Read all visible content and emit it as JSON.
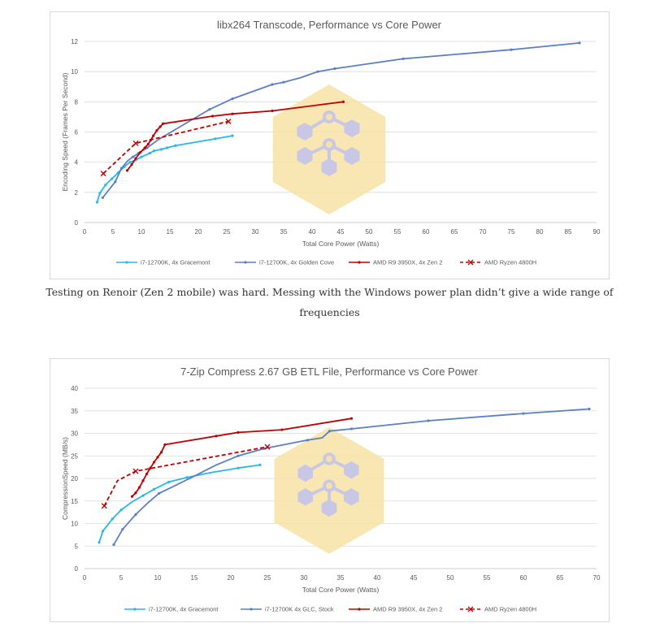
{
  "caption": "Testing on Renoir (Zen 2 mobile) was hard. Messing with the Windows power plan didn’t give a wide range of frequencies",
  "watermark": {
    "color": "#f7e2a6",
    "molecule_color": "#c8c8e6"
  },
  "chart_data": [
    {
      "type": "line",
      "title": "libx264 Transcode, Performance vs Core Power",
      "xlabel": "Total Core Power (Watts)",
      "ylabel": "Encoding Speed (Frames Per Second)",
      "xlim": [
        0,
        90
      ],
      "ylim": [
        0,
        12
      ],
      "xticks": [
        0,
        5,
        10,
        15,
        20,
        25,
        30,
        35,
        40,
        45,
        50,
        55,
        60,
        65,
        70,
        75,
        80,
        85,
        90
      ],
      "yticks": [
        0,
        2,
        4,
        6,
        8,
        10,
        12
      ],
      "grid": true,
      "legend_position": "bottom",
      "series": [
        {
          "name": "i7-12700K, 4x Gracemont",
          "color": "#29b6e8",
          "dashed": false,
          "marker": "dot",
          "x": [
            2.2,
            2.7,
            3.7,
            4.8,
            5.9,
            7.0,
            8.0,
            9.0,
            10.0,
            11.5,
            12.2,
            13.5,
            14.5,
            16.0,
            23.0,
            26.0
          ],
          "y": [
            1.35,
            1.95,
            2.5,
            2.9,
            3.3,
            3.7,
            4.0,
            4.15,
            4.35,
            4.6,
            4.75,
            4.85,
            4.95,
            5.1,
            5.55,
            5.75
          ]
        },
        {
          "name": "i7-12700K, 4x Golden Cove",
          "color": "#5b7fc7",
          "dashed": false,
          "marker": "dot",
          "x": [
            3.2,
            5.4,
            6.5,
            7.6,
            8.5,
            9.5,
            11.0,
            13.0,
            17.0,
            22.0,
            26.0,
            33.0,
            35.0,
            38.0,
            41.0,
            44.0,
            56.0,
            75.0,
            87.0
          ],
          "y": [
            1.65,
            2.7,
            3.6,
            4.1,
            4.35,
            4.6,
            4.95,
            5.5,
            6.4,
            7.5,
            8.2,
            9.15,
            9.3,
            9.6,
            10.0,
            10.2,
            10.85,
            11.45,
            11.9
          ],
          "hidden_markers": [
            3,
            7,
            8,
            13
          ]
        },
        {
          "name": "AMD R9 3950X, 4x Zen 2",
          "color": "#c00000",
          "dashed": false,
          "marker": "dot",
          "x": [
            7.5,
            8.3,
            9.0,
            9.8,
            10.6,
            11.2,
            11.6,
            12.1,
            12.7,
            13.3,
            13.8,
            22.5,
            26.0,
            33.0,
            45.5
          ],
          "y": [
            3.45,
            3.85,
            4.25,
            4.65,
            4.95,
            5.2,
            5.45,
            5.75,
            6.1,
            6.35,
            6.55,
            7.05,
            7.2,
            7.4,
            8.0
          ]
        },
        {
          "name": "AMD Ryzen 4800H",
          "color": "#c00000",
          "dashed": true,
          "marker": "x",
          "x": [
            3.3,
            9.0,
            25.3
          ],
          "y": [
            3.25,
            5.25,
            6.7
          ]
        }
      ]
    },
    {
      "type": "line",
      "title": "7-Zip Compress 2.67 GB ETL File, Performance vs Core Power",
      "xlabel": "Total Core Power (Watts)",
      "ylabel": "CompressionSpeed (MB/s)",
      "xlim": [
        0,
        70
      ],
      "ylim": [
        0,
        40
      ],
      "xticks": [
        0,
        5,
        10,
        15,
        20,
        25,
        30,
        35,
        40,
        45,
        50,
        55,
        60,
        65,
        70
      ],
      "yticks": [
        0,
        5,
        10,
        15,
        20,
        25,
        30,
        35,
        40
      ],
      "grid": true,
      "legend_position": "bottom",
      "series": [
        {
          "name": "i7-12700K, 4x Gracemont",
          "color": "#29b6e8",
          "dashed": false,
          "marker": "dot",
          "x": [
            2.0,
            2.5,
            3.8,
            5.0,
            6.5,
            8.0,
            9.5,
            11.5,
            14.0,
            17.0,
            21.0,
            24.0
          ],
          "y": [
            5.8,
            8.3,
            11.0,
            13.0,
            14.8,
            16.2,
            17.6,
            19.2,
            20.2,
            21.2,
            22.3,
            23.0
          ],
          "hidden_markers": [
            4,
            9
          ]
        },
        {
          "name": "i7-12700K 4x GLC, Stock",
          "color": "#5b7fc7",
          "dashed": false,
          "marker": "dot",
          "x": [
            4.0,
            5.2,
            7.0,
            8.8,
            10.2,
            12.5,
            15.0,
            18.0,
            21.0,
            24.5,
            28.5,
            30.5,
            32.5,
            33.5,
            36.5,
            47.0,
            60.0,
            69.0
          ],
          "y": [
            5.3,
            8.7,
            12.0,
            14.8,
            16.7,
            18.5,
            20.5,
            23.0,
            25.0,
            26.6,
            27.9,
            28.5,
            29.0,
            30.5,
            31.0,
            32.8,
            34.4,
            35.4
          ],
          "hidden_markers": [
            3,
            5,
            6,
            7,
            10,
            12
          ]
        },
        {
          "name": "AMD R9 3950X, 4x Zen 2",
          "color": "#c00000",
          "dashed": false,
          "marker": "dot",
          "x": [
            6.5,
            7.0,
            7.5,
            8.0,
            8.5,
            9.0,
            9.5,
            10.0,
            10.5,
            11.0,
            18.0,
            21.0,
            27.0,
            36.5
          ],
          "y": [
            16.0,
            16.8,
            18.0,
            19.5,
            21.0,
            22.3,
            23.6,
            24.7,
            25.8,
            27.5,
            29.4,
            30.2,
            30.8,
            33.3
          ]
        },
        {
          "name": "AMD Ryzen 4800H",
          "color": "#c00000",
          "dashed": true,
          "marker": "x",
          "x": [
            2.7,
            4.5,
            7.0,
            25.0
          ],
          "y": [
            13.9,
            19.5,
            21.6,
            27.0
          ],
          "hidden_markers": [
            1
          ]
        }
      ]
    }
  ]
}
